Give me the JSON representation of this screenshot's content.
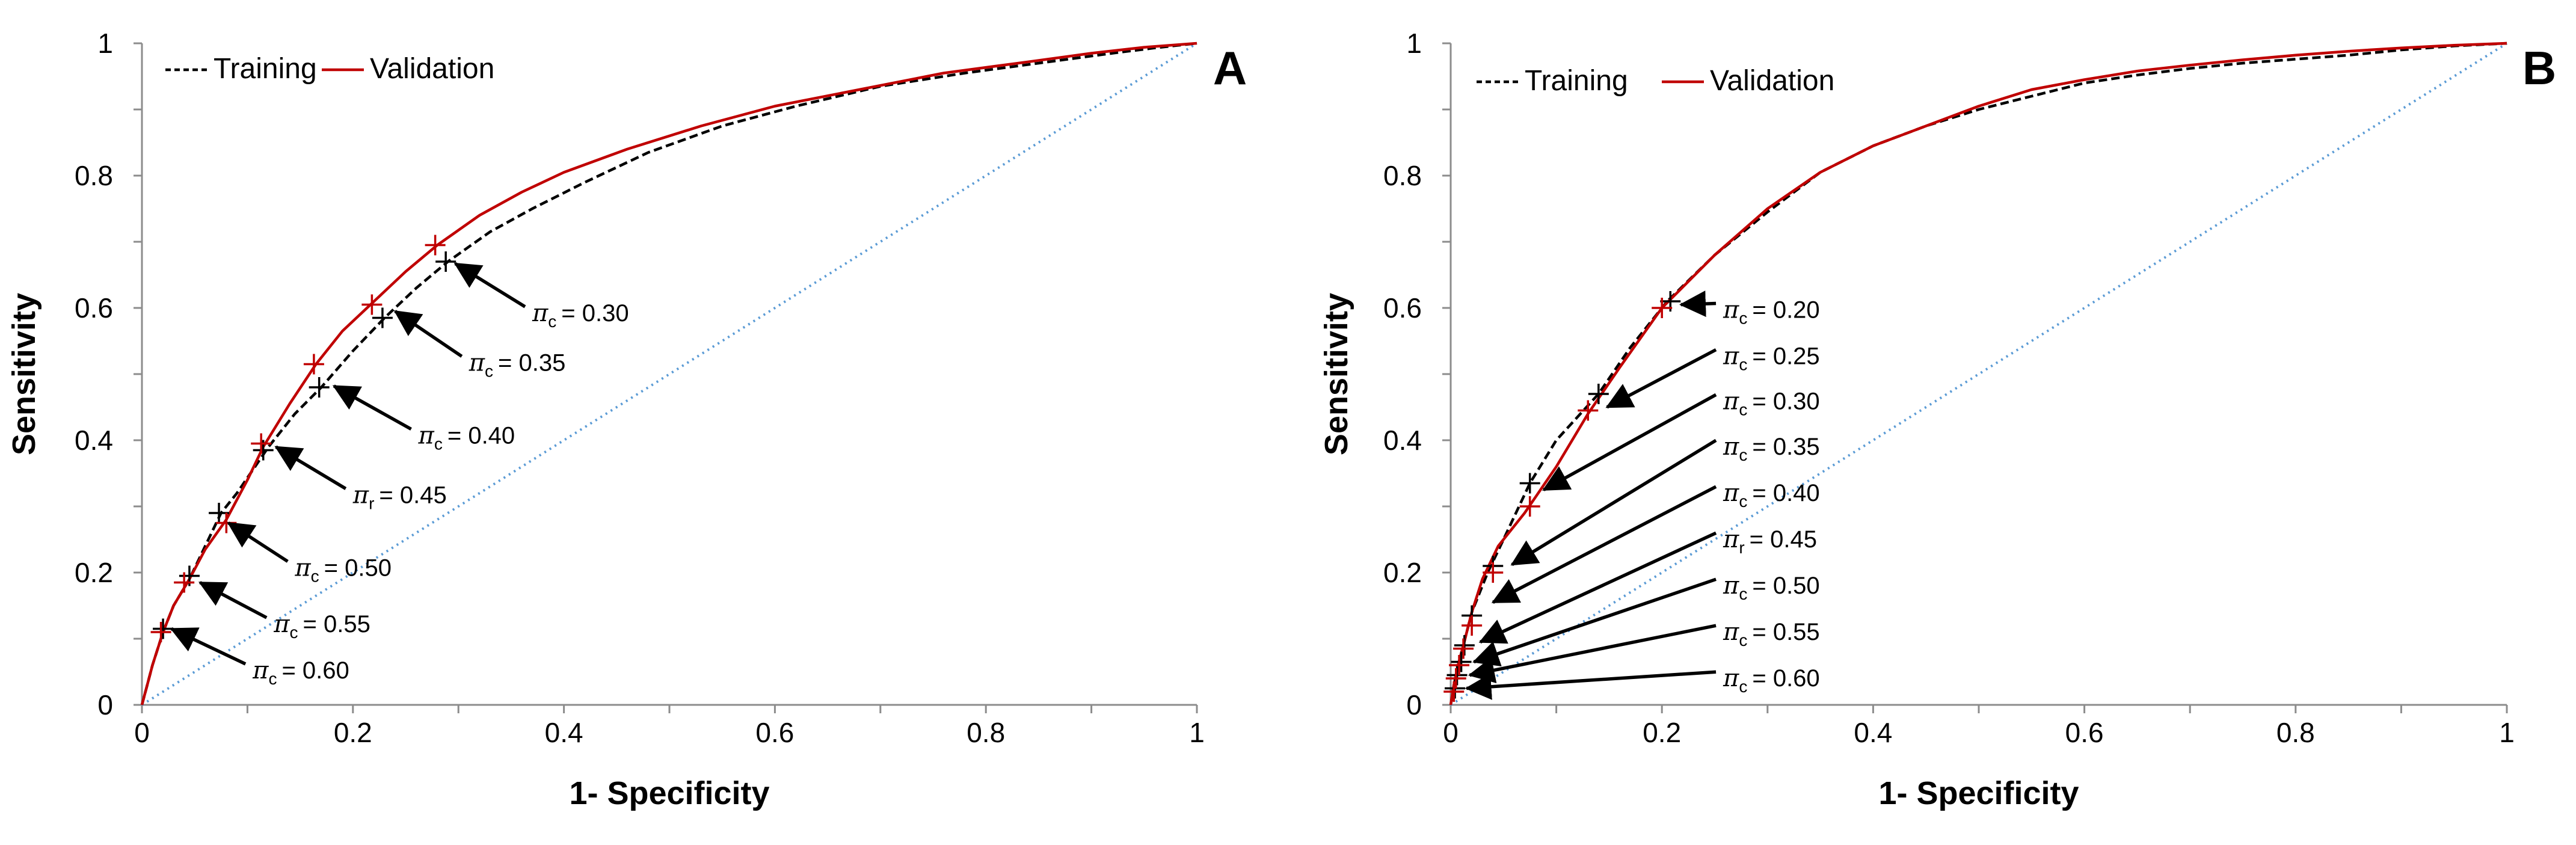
{
  "chart_data": [
    {
      "type": "line",
      "panel": "A",
      "xlabel": "1- Specificity",
      "ylabel": "Sensitivity",
      "xlim": [
        0,
        1
      ],
      "ylim": [
        0,
        1
      ],
      "xticks": [
        "0",
        "0.2",
        "0.4",
        "0.6",
        "0.8",
        "1"
      ],
      "yticks": [
        "0",
        "0.2",
        "0.4",
        "0.6",
        "0.8",
        "1"
      ],
      "grid": false,
      "legend": "top-left",
      "series": [
        {
          "name": "Training",
          "style": "dashed",
          "color": "#000000",
          "points": [
            [
              0,
              0
            ],
            [
              0.005,
              0.03
            ],
            [
              0.01,
              0.06
            ],
            [
              0.02,
              0.11
            ],
            [
              0.03,
              0.15
            ],
            [
              0.045,
              0.19
            ],
            [
              0.06,
              0.24
            ],
            [
              0.075,
              0.29
            ],
            [
              0.09,
              0.32
            ],
            [
              0.12,
              0.39
            ],
            [
              0.145,
              0.44
            ],
            [
              0.17,
              0.48
            ],
            [
              0.2,
              0.535
            ],
            [
              0.23,
              0.585
            ],
            [
              0.26,
              0.63
            ],
            [
              0.29,
              0.67
            ],
            [
              0.33,
              0.715
            ],
            [
              0.37,
              0.75
            ],
            [
              0.42,
              0.79
            ],
            [
              0.48,
              0.835
            ],
            [
              0.55,
              0.875
            ],
            [
              0.62,
              0.905
            ],
            [
              0.7,
              0.935
            ],
            [
              0.78,
              0.955
            ],
            [
              0.85,
              0.97
            ],
            [
              0.92,
              0.985
            ],
            [
              0.96,
              0.993
            ],
            [
              1,
              1
            ]
          ]
        },
        {
          "name": "Validation",
          "style": "solid",
          "color": "#c00000",
          "points": [
            [
              0,
              0
            ],
            [
              0.005,
              0.03
            ],
            [
              0.01,
              0.06
            ],
            [
              0.02,
              0.11
            ],
            [
              0.03,
              0.15
            ],
            [
              0.045,
              0.19
            ],
            [
              0.06,
              0.235
            ],
            [
              0.08,
              0.28
            ],
            [
              0.1,
              0.34
            ],
            [
              0.115,
              0.39
            ],
            [
              0.14,
              0.455
            ],
            [
              0.165,
              0.515
            ],
            [
              0.19,
              0.565
            ],
            [
              0.22,
              0.61
            ],
            [
              0.25,
              0.655
            ],
            [
              0.28,
              0.695
            ],
            [
              0.32,
              0.74
            ],
            [
              0.36,
              0.775
            ],
            [
              0.4,
              0.805
            ],
            [
              0.46,
              0.84
            ],
            [
              0.53,
              0.875
            ],
            [
              0.6,
              0.905
            ],
            [
              0.68,
              0.93
            ],
            [
              0.76,
              0.955
            ],
            [
              0.84,
              0.972
            ],
            [
              0.9,
              0.985
            ],
            [
              0.95,
              0.994
            ],
            [
              1,
              1
            ]
          ]
        },
        {
          "name": "Reference",
          "style": "dotted",
          "color": "#5b9bd5",
          "points": [
            [
              0,
              0
            ],
            [
              1,
              1
            ]
          ]
        }
      ],
      "markers": [
        {
          "series": "Training",
          "points": [
            [
              0.02,
              0.115
            ],
            [
              0.045,
              0.195
            ],
            [
              0.073,
              0.29
            ],
            [
              0.115,
              0.385
            ],
            [
              0.168,
              0.48
            ],
            [
              0.228,
              0.585
            ],
            [
              0.288,
              0.67
            ]
          ]
        },
        {
          "series": "Validation",
          "points": [
            [
              0.018,
              0.11
            ],
            [
              0.04,
              0.185
            ],
            [
              0.08,
              0.275
            ],
            [
              0.113,
              0.395
            ],
            [
              0.163,
              0.515
            ],
            [
              0.218,
              0.605
            ],
            [
              0.278,
              0.695
            ]
          ]
        }
      ],
      "annotations": [
        {
          "label": "= 0.30",
          "sub": "c",
          "text": [
            0.37,
            0.58
          ],
          "tip": [
            0.297,
            0.667
          ]
        },
        {
          "label": "= 0.35",
          "sub": "c",
          "text": [
            0.31,
            0.505
          ],
          "tip": [
            0.24,
            0.595
          ]
        },
        {
          "label": "= 0.40",
          "sub": "c",
          "text": [
            0.262,
            0.395
          ],
          "tip": [
            0.182,
            0.482
          ]
        },
        {
          "label": "= 0.45",
          "sub": "r",
          "text": [
            0.2,
            0.305
          ],
          "tip": [
            0.127,
            0.39
          ]
        },
        {
          "label": "= 0.50",
          "sub": "c",
          "text": [
            0.145,
            0.195
          ],
          "tip": [
            0.082,
            0.275
          ]
        },
        {
          "label": "= 0.55",
          "sub": "c",
          "text": [
            0.125,
            0.11
          ],
          "tip": [
            0.055,
            0.185
          ]
        },
        {
          "label": "= 0.60",
          "sub": "c",
          "text": [
            0.105,
            0.04
          ],
          "tip": [
            0.028,
            0.115
          ]
        }
      ]
    },
    {
      "type": "line",
      "panel": "B",
      "xlabel": "1- Specificity",
      "ylabel": "Sensitivity",
      "xlim": [
        0,
        1
      ],
      "ylim": [
        0,
        1
      ],
      "xticks": [
        "0",
        "0.2",
        "0.4",
        "0.6",
        "0.8",
        "1"
      ],
      "yticks": [
        "0",
        "0.2",
        "0.4",
        "0.6",
        "0.8",
        "1"
      ],
      "grid": false,
      "legend": "top-left",
      "series": [
        {
          "name": "Training",
          "style": "dashed",
          "color": "#000000",
          "points": [
            [
              0,
              0
            ],
            [
              0.003,
              0.03
            ],
            [
              0.007,
              0.06
            ],
            [
              0.012,
              0.09
            ],
            [
              0.02,
              0.14
            ],
            [
              0.035,
              0.2
            ],
            [
              0.05,
              0.25
            ],
            [
              0.075,
              0.335
            ],
            [
              0.1,
              0.4
            ],
            [
              0.14,
              0.47
            ],
            [
              0.17,
              0.54
            ],
            [
              0.205,
              0.61
            ],
            [
              0.25,
              0.68
            ],
            [
              0.3,
              0.745
            ],
            [
              0.35,
              0.805
            ],
            [
              0.4,
              0.845
            ],
            [
              0.45,
              0.875
            ],
            [
              0.5,
              0.9
            ],
            [
              0.55,
              0.92
            ],
            [
              0.6,
              0.94
            ],
            [
              0.65,
              0.952
            ],
            [
              0.7,
              0.962
            ],
            [
              0.75,
              0.97
            ],
            [
              0.8,
              0.976
            ],
            [
              0.85,
              0.982
            ],
            [
              0.9,
              0.99
            ],
            [
              0.95,
              0.996
            ],
            [
              1,
              1
            ]
          ]
        },
        {
          "name": "Validation",
          "style": "solid",
          "color": "#c00000",
          "points": [
            [
              0,
              0
            ],
            [
              0.003,
              0.03
            ],
            [
              0.007,
              0.06
            ],
            [
              0.012,
              0.09
            ],
            [
              0.02,
              0.14
            ],
            [
              0.03,
              0.19
            ],
            [
              0.045,
              0.24
            ],
            [
              0.07,
              0.29
            ],
            [
              0.1,
              0.36
            ],
            [
              0.13,
              0.44
            ],
            [
              0.16,
              0.51
            ],
            [
              0.2,
              0.6
            ],
            [
              0.25,
              0.68
            ],
            [
              0.3,
              0.75
            ],
            [
              0.35,
              0.805
            ],
            [
              0.4,
              0.845
            ],
            [
              0.45,
              0.875
            ],
            [
              0.5,
              0.905
            ],
            [
              0.55,
              0.93
            ],
            [
              0.6,
              0.945
            ],
            [
              0.65,
              0.958
            ],
            [
              0.7,
              0.967
            ],
            [
              0.75,
              0.975
            ],
            [
              0.8,
              0.982
            ],
            [
              0.85,
              0.988
            ],
            [
              0.9,
              0.993
            ],
            [
              0.95,
              0.997
            ],
            [
              1,
              1
            ]
          ]
        },
        {
          "name": "Reference",
          "style": "dotted",
          "color": "#5b9bd5",
          "points": [
            [
              0,
              0
            ],
            [
              1,
              1
            ]
          ]
        }
      ],
      "markers": [
        {
          "series": "Training",
          "points": [
            [
              0.004,
              0.025
            ],
            [
              0.006,
              0.045
            ],
            [
              0.01,
              0.065
            ],
            [
              0.013,
              0.09
            ],
            [
              0.02,
              0.135
            ],
            [
              0.04,
              0.21
            ],
            [
              0.075,
              0.335
            ],
            [
              0.14,
              0.47
            ],
            [
              0.208,
              0.61
            ]
          ]
        },
        {
          "series": "Validation",
          "points": [
            [
              0.003,
              0.02
            ],
            [
              0.005,
              0.04
            ],
            [
              0.008,
              0.06
            ],
            [
              0.012,
              0.085
            ],
            [
              0.02,
              0.12
            ],
            [
              0.04,
              0.2
            ],
            [
              0.075,
              0.3
            ],
            [
              0.13,
              0.445
            ],
            [
              0.2,
              0.6
            ]
          ]
        }
      ],
      "annotations": [
        {
          "label": "= 0.20",
          "sub": "c",
          "text": [
            0.258,
            0.585
          ],
          "tip": [
            0.218,
            0.605
          ]
        },
        {
          "label": "= 0.25",
          "sub": "c",
          "text": [
            0.258,
            0.515
          ],
          "tip": [
            0.148,
            0.45
          ]
        },
        {
          "label": "= 0.30",
          "sub": "c",
          "text": [
            0.258,
            0.447
          ],
          "tip": [
            0.088,
            0.325
          ]
        },
        {
          "label": "= 0.35",
          "sub": "c",
          "text": [
            0.258,
            0.378
          ],
          "tip": [
            0.058,
            0.212
          ]
        },
        {
          "label": "= 0.40",
          "sub": "c",
          "text": [
            0.258,
            0.308
          ],
          "tip": [
            0.04,
            0.155
          ]
        },
        {
          "label": "= 0.45",
          "sub": "r",
          "text": [
            0.258,
            0.238
          ],
          "tip": [
            0.028,
            0.095
          ]
        },
        {
          "label": "= 0.50",
          "sub": "c",
          "text": [
            0.258,
            0.168
          ],
          "tip": [
            0.022,
            0.065
          ]
        },
        {
          "label": "= 0.55",
          "sub": "c",
          "text": [
            0.258,
            0.098
          ],
          "tip": [
            0.018,
            0.045
          ]
        },
        {
          "label": "= 0.60",
          "sub": "c",
          "text": [
            0.258,
            0.028
          ],
          "tip": [
            0.015,
            0.025
          ]
        }
      ]
    }
  ]
}
